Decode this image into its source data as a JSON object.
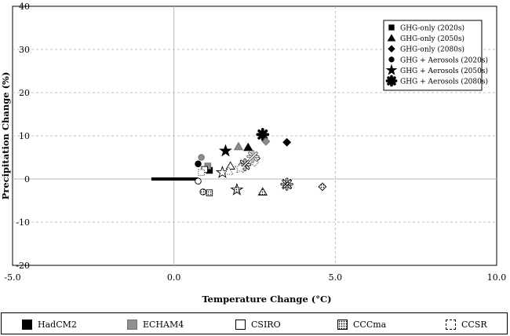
{
  "chart_data": {
    "type": "scatter",
    "xlabel": "Temperature Change (°C)",
    "ylabel": "Precipitation Change (%)",
    "xlim": [
      -5,
      10
    ],
    "ylim": [
      -20,
      40
    ],
    "x_ticks": [
      "-5.0",
      "0.0",
      "5.0",
      "10.0"
    ],
    "y_ticks": [
      "-20",
      "-10",
      "0",
      "10",
      "20",
      "30",
      "40"
    ],
    "grid": "dashed gridlines at x=5 and y=-10,10,20,30; solid reference lines at x=0 and y=0",
    "legend_position": "top-right",
    "scenario_legend": [
      {
        "label": "GHG-only (2020s)",
        "marker": "square"
      },
      {
        "label": "GHG-only (2050s)",
        "marker": "triangle"
      },
      {
        "label": "GHG-only (2080s)",
        "marker": "diamond"
      },
      {
        "label": "GHG + Aerosols (2020s)",
        "marker": "circle"
      },
      {
        "label": "GHG + Aerosols (2050s)",
        "marker": "star"
      },
      {
        "label": "GHG + Aerosols (2080s)",
        "marker": "asterisk"
      }
    ],
    "model_legend": [
      {
        "label": "HadCM2",
        "style": "black",
        "color": "#000000"
      },
      {
        "label": "ECHAM4",
        "style": "gray",
        "color": "#909090"
      },
      {
        "label": "CSIRO",
        "style": "white",
        "color": "#ffffff"
      },
      {
        "label": "CCCma",
        "style": "dotted",
        "color": "#d8d8d8"
      },
      {
        "label": "CCSR",
        "style": "dashed",
        "color": "#ffffff"
      }
    ],
    "reference_bar": {
      "x_start": -0.7,
      "x_end": 0.75,
      "y": 0
    },
    "points": [
      {
        "model": "HadCM2",
        "period": "2020s",
        "scenario": "GHG-only",
        "marker": "square",
        "x": 1.1,
        "y": 2.0
      },
      {
        "model": "HadCM2",
        "period": "2050s",
        "scenario": "GHG-only",
        "marker": "triangle",
        "x": 2.3,
        "y": 7.3
      },
      {
        "model": "HadCM2",
        "period": "2080s",
        "scenario": "GHG-only",
        "marker": "diamond",
        "x": 3.5,
        "y": 8.5
      },
      {
        "model": "HadCM2",
        "period": "2020s",
        "scenario": "GHG + Aerosols",
        "marker": "circle",
        "x": 0.75,
        "y": 3.5
      },
      {
        "model": "HadCM2",
        "period": "2050s",
        "scenario": "GHG + Aerosols",
        "marker": "star",
        "x": 1.6,
        "y": 6.5
      },
      {
        "model": "HadCM2",
        "period": "2080s",
        "scenario": "GHG + Aerosols",
        "marker": "asterisk",
        "x": 2.75,
        "y": 10.3
      },
      {
        "model": "ECHAM4",
        "period": "2020s",
        "scenario": "GHG-only",
        "marker": "square",
        "x": 1.05,
        "y": 3.0
      },
      {
        "model": "ECHAM4",
        "period": "2050s",
        "scenario": "GHG-only",
        "marker": "triangle",
        "x": 2.0,
        "y": 7.5
      },
      {
        "model": "ECHAM4",
        "period": "2080s",
        "scenario": "GHG-only",
        "marker": "diamond",
        "x": 2.85,
        "y": 8.7
      },
      {
        "model": "ECHAM4",
        "period": "2020s",
        "scenario": "GHG + Aerosols",
        "marker": "circle",
        "x": 0.85,
        "y": 5.0
      },
      {
        "model": "CSIRO",
        "period": "2020s",
        "scenario": "GHG-only",
        "marker": "square",
        "x": 0.95,
        "y": 2.2
      },
      {
        "model": "CSIRO",
        "period": "2050s",
        "scenario": "GHG-only",
        "marker": "triangle",
        "x": 1.75,
        "y": 3.0
      },
      {
        "model": "CSIRO",
        "period": "2080s",
        "scenario": "GHG-only",
        "marker": "diamond",
        "x": 2.55,
        "y": 4.8
      },
      {
        "model": "CSIRO",
        "period": "2020s",
        "scenario": "GHG + Aerosols",
        "marker": "circle",
        "x": 0.75,
        "y": -0.5
      },
      {
        "model": "CSIRO",
        "period": "2050s",
        "scenario": "GHG + Aerosols",
        "marker": "star",
        "x": 1.5,
        "y": 1.5
      },
      {
        "model": "CSIRO",
        "period": "2080s",
        "scenario": "GHG + Aerosols",
        "marker": "asterisk",
        "x": 2.2,
        "y": 3.3
      },
      {
        "model": "CCCma",
        "period": "2020s",
        "scenario": "GHG-only",
        "marker": "square",
        "x": 1.1,
        "y": -3.2
      },
      {
        "model": "CCCma",
        "period": "2050s",
        "scenario": "GHG-only",
        "marker": "triangle",
        "x": 2.75,
        "y": -3.0
      },
      {
        "model": "CCCma",
        "period": "2080s",
        "scenario": "GHG-only",
        "marker": "diamond",
        "x": 4.6,
        "y": -1.8
      },
      {
        "model": "CCCma",
        "period": "2020s",
        "scenario": "GHG + Aerosols",
        "marker": "circle",
        "x": 0.9,
        "y": -3.0
      },
      {
        "model": "CCCma",
        "period": "2050s",
        "scenario": "GHG + Aerosols",
        "marker": "star",
        "x": 1.95,
        "y": -2.5
      },
      {
        "model": "CCCma",
        "period": "2080s",
        "scenario": "GHG + Aerosols",
        "marker": "asterisk",
        "x": 3.5,
        "y": -1.2
      },
      {
        "model": "CCSR",
        "period": "2020s",
        "scenario": "GHG-only",
        "marker": "square",
        "x": 0.85,
        "y": 1.5
      },
      {
        "model": "CCSR",
        "period": "2050s",
        "scenario": "GHG-only",
        "marker": "triangle",
        "x": 1.7,
        "y": 1.8
      },
      {
        "model": "CCSR",
        "period": "2080s",
        "scenario": "GHG-only",
        "marker": "diamond",
        "x": 2.5,
        "y": 3.8
      },
      {
        "model": "CCSR",
        "period": "2050s",
        "scenario": "GHG + Aerosols",
        "marker": "star",
        "x": 2.05,
        "y": 2.5
      },
      {
        "model": "CCSR",
        "period": "2080s",
        "scenario": "GHG + Aerosols",
        "marker": "asterisk",
        "x": 2.45,
        "y": 5.2
      }
    ]
  }
}
